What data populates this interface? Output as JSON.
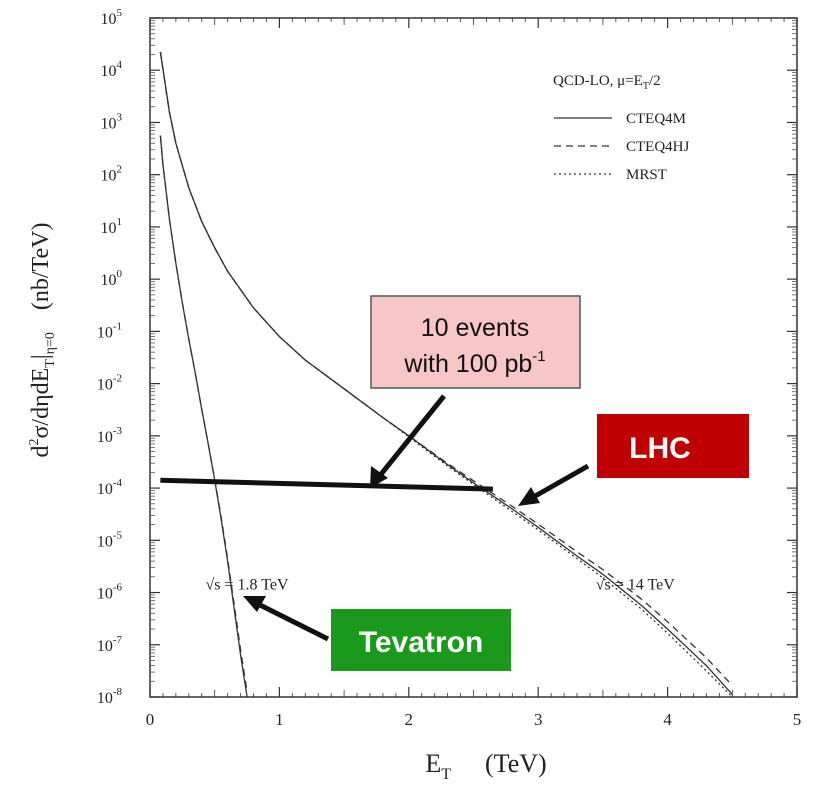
{
  "chart_data": {
    "type": "line",
    "xlabel": "E",
    "xlabel_sub": "T",
    "xlabel_unit": "(TeV)",
    "ylabel_parts": [
      "d",
      "2",
      "σ/dηdE",
      "T",
      "|",
      "η=0",
      "(nb/TeV)"
    ],
    "xlim": [
      0,
      5
    ],
    "ylim_log10": [
      -8,
      5
    ],
    "x_ticks": [
      "0",
      "1",
      "2",
      "3",
      "4",
      "5"
    ],
    "y_tick_exponents": [
      5,
      4,
      3,
      2,
      1,
      0,
      -1,
      -2,
      -3,
      -4,
      -5,
      -6,
      -7,
      -8
    ],
    "y_tick_base": "10",
    "legend": {
      "title_main": "QCD-LO, μ=E",
      "title_sub": "T",
      "title_tail": "/2",
      "entries": [
        {
          "label": "CTEQ4M",
          "style": "solid"
        },
        {
          "label": "CTEQ4HJ",
          "style": "dashed"
        },
        {
          "label": "MRST",
          "style": "dotted"
        }
      ],
      "placement": "top-right"
    },
    "series": [
      {
        "name": "LHC √s = 14 TeV (CTEQ4M)",
        "style": "solid",
        "x": [
          0.08,
          0.15,
          0.2,
          0.3,
          0.4,
          0.5,
          0.6,
          0.8,
          1.0,
          1.2,
          1.5,
          1.8,
          2.0,
          2.3,
          2.5,
          2.8,
          3.0,
          3.3,
          3.5,
          3.8,
          4.0,
          4.3,
          4.5
        ],
        "log10_y": [
          4.35,
          3.2,
          2.6,
          1.75,
          1.1,
          0.6,
          0.15,
          -0.55,
          -1.1,
          -1.55,
          -2.1,
          -2.65,
          -3.0,
          -3.55,
          -3.9,
          -4.4,
          -4.75,
          -5.3,
          -5.65,
          -6.25,
          -6.7,
          -7.4,
          -7.95
        ]
      },
      {
        "name": "LHC √s = 14 TeV (CTEQ4HJ)",
        "style": "dashed",
        "x": [
          0.08,
          0.15,
          0.2,
          0.3,
          0.4,
          0.5,
          0.6,
          0.8,
          1.0,
          1.2,
          1.5,
          1.8,
          2.0,
          2.3,
          2.5,
          2.8,
          3.0,
          3.3,
          3.5,
          3.8,
          4.0,
          4.3,
          4.5
        ],
        "log10_y": [
          4.35,
          3.2,
          2.6,
          1.75,
          1.1,
          0.6,
          0.15,
          -0.55,
          -1.1,
          -1.55,
          -2.1,
          -2.65,
          -3.0,
          -3.53,
          -3.86,
          -4.35,
          -4.69,
          -5.22,
          -5.56,
          -6.13,
          -6.56,
          -7.25,
          -7.78
        ]
      },
      {
        "name": "LHC √s = 14 TeV (MRST)",
        "style": "dotted",
        "x": [
          0.08,
          0.15,
          0.2,
          0.3,
          0.4,
          0.5,
          0.6,
          0.8,
          1.0,
          1.2,
          1.5,
          1.8,
          2.0,
          2.3,
          2.5,
          2.8,
          3.0,
          3.3,
          3.5,
          3.8,
          4.0,
          4.3,
          4.5
        ],
        "log10_y": [
          4.35,
          3.2,
          2.6,
          1.75,
          1.1,
          0.6,
          0.15,
          -0.55,
          -1.1,
          -1.55,
          -2.1,
          -2.65,
          -3.02,
          -3.58,
          -3.93,
          -4.45,
          -4.8,
          -5.35,
          -5.72,
          -6.32,
          -6.78,
          -7.5,
          -8.0
        ]
      },
      {
        "name": "Tevatron √s = 1.8 TeV (CTEQ4M)",
        "style": "solid",
        "x": [
          0.08,
          0.1,
          0.15,
          0.2,
          0.25,
          0.3,
          0.35,
          0.4,
          0.45,
          0.5,
          0.55,
          0.6,
          0.65,
          0.7,
          0.75
        ],
        "log10_y": [
          2.75,
          2.2,
          1.15,
          0.3,
          -0.45,
          -1.15,
          -1.8,
          -2.5,
          -3.15,
          -3.85,
          -4.6,
          -5.4,
          -6.3,
          -7.2,
          -8.0
        ]
      },
      {
        "name": "Tevatron √s = 1.8 TeV (CTEQ4HJ)",
        "style": "dashed",
        "x": [
          0.08,
          0.1,
          0.15,
          0.2,
          0.25,
          0.3,
          0.35,
          0.4,
          0.45,
          0.5,
          0.55,
          0.6,
          0.65,
          0.7,
          0.75
        ],
        "log10_y": [
          2.75,
          2.2,
          1.15,
          0.3,
          -0.45,
          -1.15,
          -1.8,
          -2.5,
          -3.15,
          -3.83,
          -4.56,
          -5.35,
          -6.22,
          -7.1,
          -7.9
        ]
      }
    ],
    "threshold_line": {
      "x": [
        0.08,
        2.65
      ],
      "log10_y": [
        -3.85,
        -4.02
      ]
    },
    "energy_labels": [
      {
        "text": "√s = 1.8 TeV",
        "anchor_x": 0.75,
        "anchor_log10_y": -5.85
      },
      {
        "text": "√s = 14 TeV",
        "anchor_x": 3.75,
        "anchor_log10_y": -5.85
      }
    ],
    "callouts": {
      "events": {
        "line1": "10 events",
        "line2_main": "with 100 pb",
        "line2_sup": "-1",
        "fill": "#f7c6c6",
        "border": "#555555"
      },
      "lhc": {
        "text": "LHC",
        "fill": "#c00000",
        "text_color": "#ffffff"
      },
      "tevatron": {
        "text": "Tevatron",
        "fill": "#1a9a1a",
        "text_color": "#ffffff"
      }
    }
  }
}
